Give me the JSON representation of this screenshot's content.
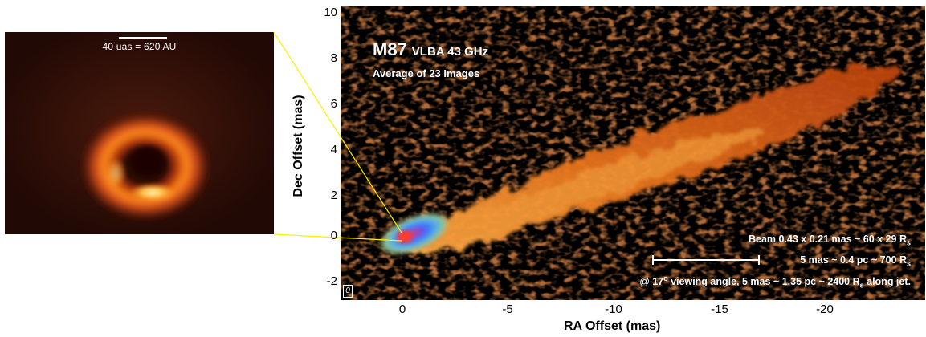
{
  "inset": {
    "scale_label": "40 uas = 620 AU"
  },
  "panel": {
    "title": "M87",
    "instrument": "VLBA  43 GHz",
    "subtitle": "Average of 23 Images",
    "beam_note": "Beam 0.43 x 0.21 mas ~ 60 x 29 R",
    "beam_sub": "s",
    "scale_note": "5 mas ~ 0.4 pc ~ 700 R",
    "scale_sub": "s",
    "angle_pre": "@ 17",
    "angle_sup": "o",
    "angle_mid": " viewing angle, 5 mas ~ 1.35 pc ~ 2400 R",
    "angle_sub": "s",
    "angle_post": " along jet.",
    "corner": "0"
  },
  "axes": {
    "xlabel": "RA Offset (mas)",
    "ylabel": "Dec Offset (mas)",
    "y_ticks": [
      "10",
      "8",
      "6",
      "4",
      "2",
      "0",
      "-2"
    ],
    "x_ticks": [
      "0",
      "-5",
      "-10",
      "-15",
      "-20"
    ]
  },
  "colors": {
    "jet_core": "#3a78ff",
    "jet_body": "#e86a1a",
    "ring": "#ff8a1a",
    "connector": "#ffee00"
  }
}
